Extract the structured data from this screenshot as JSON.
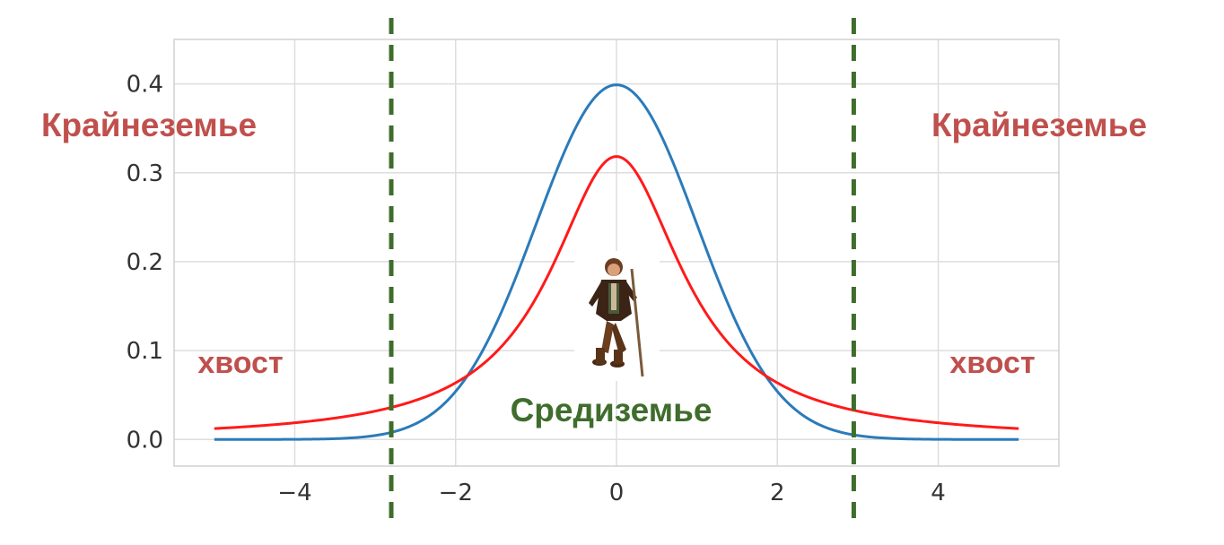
{
  "chart_data": {
    "type": "line",
    "title": "",
    "xlabel": "",
    "ylabel": "",
    "xlim": [
      -5.5,
      5.5
    ],
    "ylim": [
      -0.03,
      0.45
    ],
    "xticks": [
      -4,
      -2,
      0,
      2,
      4
    ],
    "xtick_labels": [
      "−4",
      "−2",
      "0",
      "2",
      "4"
    ],
    "yticks": [
      0.0,
      0.1,
      0.2,
      0.3,
      0.4
    ],
    "ytick_labels": [
      "0.0",
      "0.1",
      "0.2",
      "0.3",
      "0.4"
    ],
    "grid": true,
    "x_range": [
      -5,
      5
    ],
    "series": [
      {
        "color": "#2b7bba",
        "x": [
          -5,
          -4,
          -3,
          -2.8,
          -2,
          -1.8,
          -1,
          0,
          1,
          1.8,
          2,
          2.8,
          3,
          4,
          5
        ],
        "y": [
          0.0,
          0.0001,
          0.0044,
          0.0079,
          0.054,
          0.079,
          0.242,
          0.399,
          0.242,
          0.079,
          0.054,
          0.0079,
          0.0044,
          0.0001,
          0.0
        ]
      },
      {
        "color": "#ff1a1a",
        "x": [
          -5,
          -4,
          -3,
          -2.8,
          -2,
          -1.8,
          -1,
          0,
          1,
          1.8,
          2,
          2.8,
          3,
          4,
          5
        ],
        "y": [
          0.0122,
          0.0187,
          0.0318,
          0.036,
          0.0637,
          0.073,
          0.159,
          0.318,
          0.159,
          0.073,
          0.0637,
          0.036,
          0.0318,
          0.0187,
          0.0122
        ]
      }
    ],
    "vlines": [
      {
        "x": -2.8,
        "color": "#3f6d2c",
        "style": "dashed"
      },
      {
        "x": 2.95,
        "color": "#3f6d2c",
        "style": "dashed"
      }
    ],
    "annotations": {
      "far_left": "Крайнеземье",
      "far_right": "Крайнеземье",
      "tail_left": "хвост",
      "tail_right": "хвост",
      "middle": "Средиземье"
    },
    "annotation_colors": {
      "far": "#c0504d",
      "middle": "#3f6d2c"
    }
  }
}
